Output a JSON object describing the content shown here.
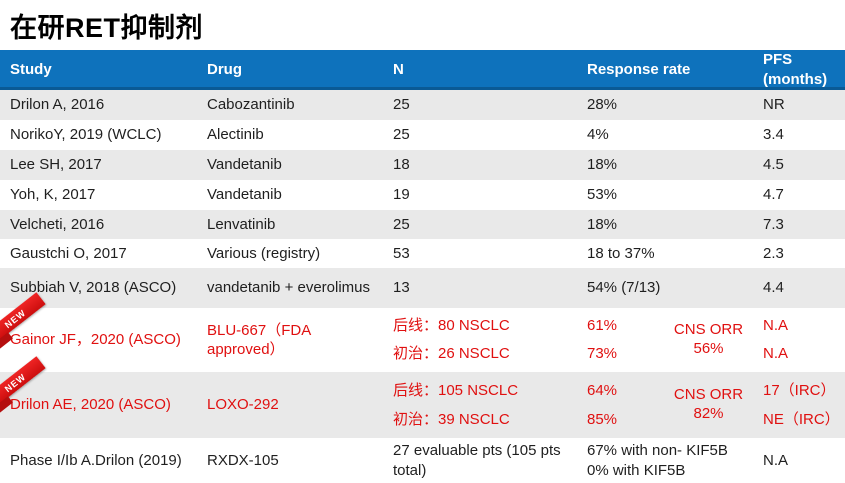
{
  "title": "在研RET抑制剂",
  "colors": {
    "header_bg": "#0e72bc",
    "header_border": "#0a5a95",
    "header_text": "#ffffff",
    "stripe_bg": "#e9e9e9",
    "highlight_red": "#e01010",
    "ribbon_red": "#cc0e0e"
  },
  "table": {
    "headers": {
      "study": "Study",
      "drug": "Drug",
      "n": "N",
      "response": "Response rate",
      "pfs": "PFS (months)"
    },
    "rows": [
      {
        "study": "Drilon A, 2016",
        "drug": "Cabozantinib",
        "n": "25",
        "response": "28%",
        "pfs": "NR"
      },
      {
        "study": "NorikoY, 2019 (WCLC)",
        "drug": "Alectinib",
        "n": "25",
        "response": "4%",
        "pfs": "3.4"
      },
      {
        "study": "Lee SH, 2017",
        "drug": "Vandetanib",
        "n": "18",
        "response": "18%",
        "pfs": "4.5"
      },
      {
        "study": "Yoh, K, 2017",
        "drug": "Vandetanib",
        "n": "19",
        "response": "53%",
        "pfs": "4.7"
      },
      {
        "study": "Velcheti, 2016",
        "drug": "Lenvatinib",
        "n": "25",
        "response": "18%",
        "pfs": "7.3"
      },
      {
        "study": "Gaustchi O, 2017",
        "drug": "Various (registry)",
        "n": "53",
        "response": "18 to 37%",
        "pfs": "2.3"
      },
      {
        "study": "Subbiah V, 2018 (ASCO)",
        "drug": "vandetanib + everolimus",
        "n": "13",
        "response": "54% (7/13)",
        "pfs": "4.4"
      },
      {
        "badge": "NEW",
        "study": "Gainor JF，2020 (ASCO)",
        "drug": "BLU-667（FDA approved）",
        "n_lines": [
          "后线：80 NSCLC",
          "初治：26 NSCLC"
        ],
        "response_lines": [
          "61%",
          "73%"
        ],
        "cns_lines": [
          "CNS ORR",
          "56%"
        ],
        "pfs_lines": [
          "N.A",
          "N.A"
        ]
      },
      {
        "badge": "NEW",
        "study": "Drilon AE, 2020 (ASCO)",
        "drug": "LOXO-292",
        "n_lines": [
          "后线：105 NSCLC",
          "初治：39 NSCLC"
        ],
        "response_lines": [
          "64%",
          "85%"
        ],
        "cns_lines": [
          "CNS ORR",
          "82%"
        ],
        "pfs_lines": [
          "17（IRC）",
          "NE（IRC）"
        ]
      },
      {
        "study": "Phase I/Ib A.Drilon (2019)",
        "drug": "RXDX-105",
        "n": "27 evaluable pts (105 pts total)",
        "response_lines": [
          "67% with non- KIF5B",
          "0% with KIF5B"
        ],
        "pfs": "N.A"
      }
    ]
  }
}
